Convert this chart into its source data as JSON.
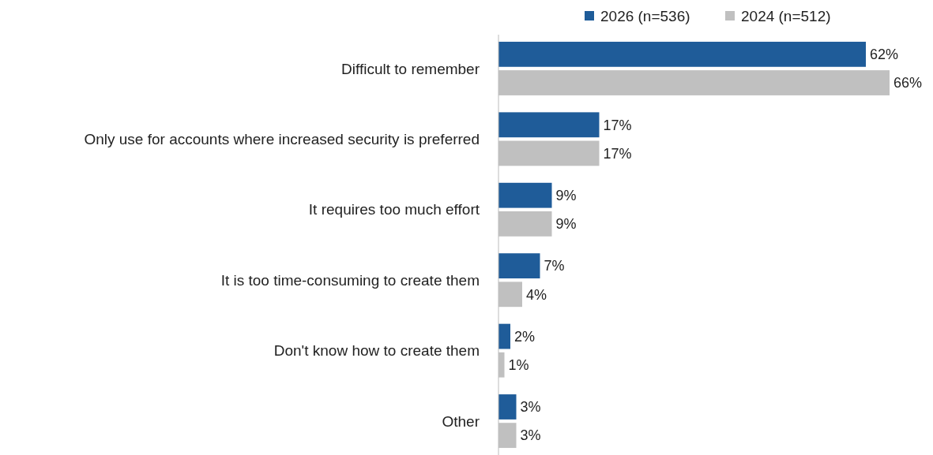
{
  "chart_data": {
    "type": "bar",
    "orientation": "horizontal",
    "categories": [
      "Difficult to remember",
      "Only use for accounts where increased security is preferred",
      "It requires too much effort",
      "It is too time-consuming to create them",
      "Don't know how to create them",
      "Other"
    ],
    "series": [
      {
        "name": "2026 (n=536)",
        "color": "#1f5c99",
        "values": [
          62,
          17,
          9,
          7,
          2,
          3
        ],
        "value_labels": [
          "62%",
          "17%",
          "9%",
          "7%",
          "2%",
          "3%"
        ]
      },
      {
        "name": "2024 (n=512)",
        "color": "#c0c0c0",
        "values": [
          66,
          17,
          9,
          4,
          1,
          3
        ],
        "value_labels": [
          "66%",
          "17%",
          "9%",
          "4%",
          "1%",
          "3%"
        ]
      }
    ],
    "legend": "top right"
  }
}
